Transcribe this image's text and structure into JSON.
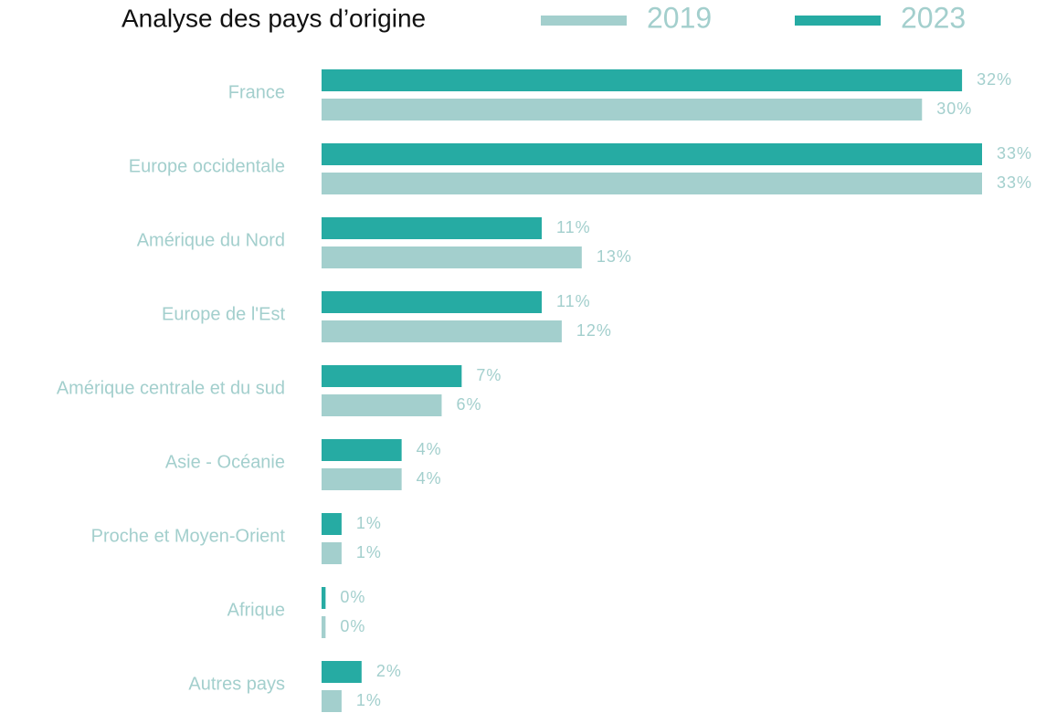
{
  "chart_data": {
    "type": "bar",
    "orientation": "horizontal",
    "title": "Analyse des pays d’origine",
    "categories": [
      "France",
      "Europe occidentale",
      "Amérique du Nord",
      "Europe de l'Est",
      "Amérique centrale et du sud",
      "Asie - Océanie",
      "Proche et Moyen-Orient",
      "Afrique",
      "Autres pays"
    ],
    "series": [
      {
        "name": "2019",
        "color": "#a3cfcd",
        "values": [
          30,
          33,
          13,
          12,
          6,
          4,
          1,
          0.2,
          1
        ],
        "value_labels": [
          "30%",
          "33%",
          "13%",
          "12%",
          "6%",
          "4%",
          "1%",
          "0%",
          "1%"
        ]
      },
      {
        "name": "2023",
        "color": "#26aba3",
        "values": [
          32,
          33,
          11,
          11,
          7,
          4,
          1,
          0.2,
          2
        ],
        "value_labels": [
          "32%",
          "33%",
          "11%",
          "11%",
          "7%",
          "4%",
          "1%",
          "0%",
          "2%"
        ]
      }
    ]
  }
}
